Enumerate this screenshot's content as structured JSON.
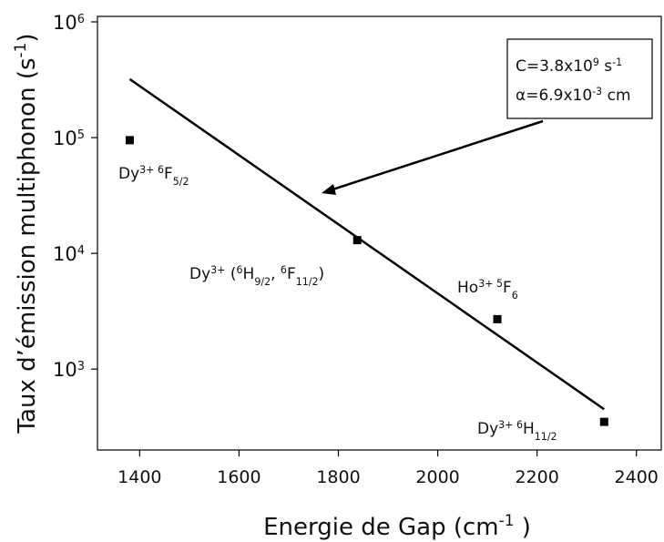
{
  "chart_data": {
    "type": "scatter",
    "x_label": [
      {
        "text": "Energie de Gap (cm"
      },
      {
        "text": "-1",
        "style": "sup"
      },
      {
        "text": " )"
      }
    ],
    "y_label": [
      {
        "text": "Taux d’émission multiphonon (s"
      },
      {
        "text": "-1",
        "style": "sup"
      },
      {
        "text": ")"
      }
    ],
    "x": [
      1380,
      1838,
      2120,
      2335
    ],
    "values": [
      95000,
      13000,
      2700,
      350
    ],
    "color": "#000000",
    "xlim": [
      1315,
      2450
    ],
    "ylim": [
      200,
      1000000
    ],
    "log_y": true,
    "xticks": [
      1400,
      1600,
      1800,
      2000,
      2200,
      2400
    ],
    "yticks": [
      {
        "value": 1000,
        "label": "10",
        "exponent": "3"
      },
      {
        "value": 10000,
        "label": "10",
        "exponent": "4"
      },
      {
        "value": 100000,
        "label": "10",
        "exponent": "5"
      },
      {
        "value": 1000000,
        "label": "10",
        "exponent": "6"
      }
    ],
    "fit": {
      "type": "line",
      "x": [
        1380,
        2335
      ],
      "values": [
        320000,
        450
      ],
      "color": "#000000"
    },
    "fit_box": {
      "lines": [
        [
          {
            "text": "C=3.8x10"
          },
          {
            "text": "9",
            "style": "sup"
          },
          {
            "text": " s"
          },
          {
            "text": "-1",
            "style": "sup"
          }
        ],
        [
          {
            "text": "α=6.9x10"
          },
          {
            "text": "-3",
            "style": "sup"
          },
          {
            "text": " cm"
          }
        ]
      ]
    },
    "annotations": [
      {
        "segments": [
          {
            "text": "Dy"
          },
          {
            "text": "3+ 6",
            "style": "sup"
          },
          {
            "text": "F"
          },
          {
            "text": "5/2",
            "style": "sub"
          }
        ]
      },
      {
        "segments": [
          {
            "text": "Dy"
          },
          {
            "text": "3+",
            "style": "sup"
          },
          {
            "text": " ("
          },
          {
            "text": "6",
            "style": "sup"
          },
          {
            "text": "H"
          },
          {
            "text": "9/2",
            "style": "sub"
          },
          {
            "text": ", "
          },
          {
            "text": "6",
            "style": "sup"
          },
          {
            "text": "F"
          },
          {
            "text": "11/2",
            "style": "sub"
          },
          {
            "text": ")"
          }
        ]
      },
      {
        "segments": [
          {
            "text": "Ho"
          },
          {
            "text": "3+ 5",
            "style": "sup"
          },
          {
            "text": "F"
          },
          {
            "text": "6",
            "style": "sub"
          }
        ]
      },
      {
        "segments": [
          {
            "text": "Dy"
          },
          {
            "text": "3+ 6",
            "style": "sup"
          },
          {
            "text": "H"
          },
          {
            "text": "11/2",
            "style": "sub"
          }
        ]
      }
    ]
  }
}
